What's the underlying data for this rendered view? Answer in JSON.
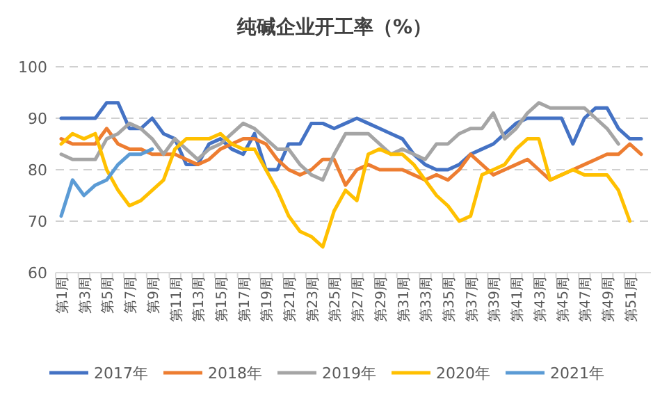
{
  "chart_data": {
    "type": "line",
    "title": "纯碱企业开工率（%）",
    "categories": [
      "第1周",
      null,
      "第3周",
      null,
      "第5周",
      null,
      "第7周",
      null,
      "第9周",
      null,
      "第11周",
      null,
      "第13周",
      null,
      "第15周",
      null,
      "第17周",
      null,
      "第19周",
      null,
      "第21周",
      null,
      "第23周",
      null,
      "第25周",
      null,
      "第27周",
      null,
      "第29周",
      null,
      "第31周",
      null,
      "第33周",
      null,
      "第35周",
      null,
      "第37周",
      null,
      "第39周",
      null,
      "第41周",
      null,
      "第43周",
      null,
      "第45周",
      null,
      "第47周",
      null,
      "第49周",
      null,
      "第51周",
      null
    ],
    "series": [
      {
        "name": "2017年",
        "color": "#4472c4",
        "values": [
          90,
          90,
          90,
          90,
          93,
          93,
          88,
          88,
          90,
          87,
          86,
          81,
          81,
          85,
          86,
          84,
          83,
          87,
          80,
          80,
          85,
          85,
          89,
          89,
          88,
          89,
          90,
          89,
          88,
          87,
          86,
          83,
          81,
          80,
          80,
          81,
          83,
          84,
          85,
          87,
          89,
          90,
          90,
          90,
          90,
          85,
          90,
          92,
          92,
          88,
          86,
          86
        ]
      },
      {
        "name": "2018年",
        "color": "#ed7d31",
        "values": [
          86,
          85,
          85,
          85,
          88,
          85,
          84,
          84,
          83,
          83,
          83,
          82,
          81,
          82,
          84,
          85,
          86,
          86,
          85,
          82,
          80,
          79,
          80,
          82,
          82,
          77,
          80,
          81,
          80,
          80,
          80,
          79,
          78,
          79,
          78,
          80,
          83,
          81,
          79,
          80,
          81,
          82,
          80,
          78,
          79,
          80,
          81,
          82,
          83,
          83,
          85,
          83
        ]
      },
      {
        "name": "2019年",
        "color": "#a5a5a5",
        "values": [
          83,
          82,
          82,
          82,
          86,
          87,
          89,
          88,
          86,
          83,
          86,
          84,
          82,
          84,
          85,
          87,
          89,
          88,
          86,
          84,
          84,
          81,
          79,
          78,
          83,
          87,
          87,
          87,
          85,
          83,
          84,
          83,
          82,
          85,
          85,
          87,
          88,
          88,
          91,
          86,
          88,
          91,
          93,
          92,
          92,
          92,
          92,
          90,
          88,
          85,
          null,
          null
        ]
      },
      {
        "name": "2020年",
        "color": "#ffc000",
        "values": [
          85,
          87,
          86,
          87,
          80,
          76,
          73,
          74,
          76,
          78,
          84,
          86,
          86,
          86,
          87,
          85,
          84,
          84,
          80,
          76,
          71,
          68,
          67,
          65,
          72,
          76,
          74,
          83,
          84,
          83,
          83,
          81,
          78,
          75,
          73,
          70,
          71,
          79,
          80,
          81,
          84,
          86,
          86,
          78,
          79,
          80,
          79,
          79,
          79,
          76,
          70,
          null
        ]
      },
      {
        "name": "2021年",
        "color": "#5b9bd5",
        "values": [
          71,
          78,
          75,
          77,
          78,
          81,
          83,
          83,
          84,
          null,
          null,
          null,
          null,
          null,
          null,
          null,
          null,
          null,
          null,
          null,
          null,
          null,
          null,
          null,
          null,
          null,
          null,
          null,
          null,
          null,
          null,
          null,
          null,
          null,
          null,
          null,
          null,
          null,
          null,
          null,
          null,
          null,
          null,
          null,
          null,
          null,
          null,
          null,
          null,
          null,
          null,
          null
        ]
      }
    ],
    "ylim": [
      60,
      100
    ],
    "yticks": [
      60,
      70,
      80,
      90,
      100
    ],
    "grid": "y",
    "legend": "bottom",
    "line_style": "solid"
  }
}
